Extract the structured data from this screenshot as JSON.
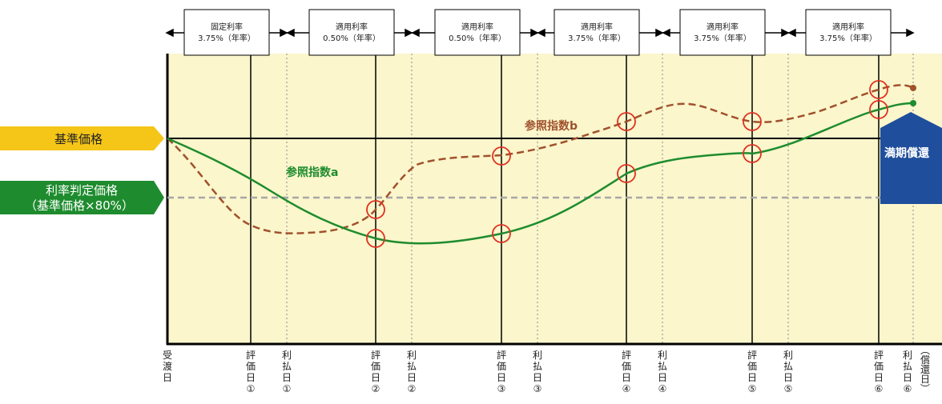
{
  "periods": [
    {
      "label": "固定利率",
      "rate": "3.75%（年率）"
    },
    {
      "label": "適用利率",
      "rate": "0.50%（年率）"
    },
    {
      "label": "適用利率",
      "rate": "0.50%（年率）"
    },
    {
      "label": "適用利率",
      "rate": "3.75%（年率）"
    },
    {
      "label": "適用利率",
      "rate": "3.75%（年率）"
    },
    {
      "label": "適用利率",
      "rate": "3.75%（年率）"
    }
  ],
  "levels": {
    "base_price": "基準価格",
    "threshold_line1": "利率判定価格",
    "threshold_line2": "（基準価格×80%）"
  },
  "maturity": "満期償還",
  "series": {
    "a": {
      "name": "参照指数a",
      "color": "#1e8c2e"
    },
    "b": {
      "name": "参照指数b",
      "color": "#a0522d"
    }
  },
  "colors": {
    "plot_bg": "#fbf6cc",
    "base_tag": "#f5c518",
    "threshold_tag": "#1e8c2e",
    "maturity": "#1f4e9c",
    "marker": "#e03020",
    "threshold_line": "#a8a8a8"
  },
  "x_axis": [
    {
      "text": "受渡日"
    },
    {
      "text": "評価日①"
    },
    {
      "text": "利払日①"
    },
    {
      "text": "評価日②"
    },
    {
      "text": "利払日②"
    },
    {
      "text": "評価日③"
    },
    {
      "text": "利払日③"
    },
    {
      "text": "評価日④"
    },
    {
      "text": "利払日④"
    },
    {
      "text": "評価日⑤"
    },
    {
      "text": "利払日⑤"
    },
    {
      "text": "評価日⑥"
    },
    {
      "text": "利払日⑥"
    },
    {
      "text": "（償還日）"
    }
  ]
}
